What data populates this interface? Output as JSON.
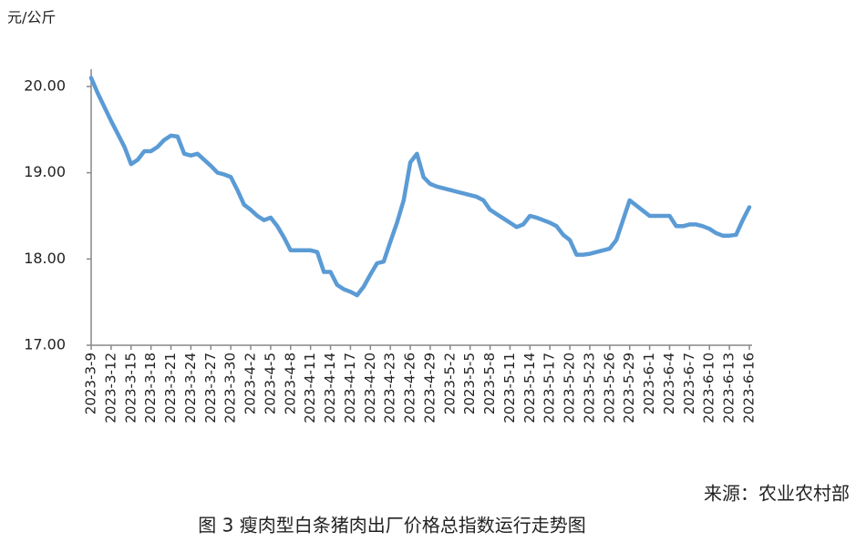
{
  "chart_data": {
    "type": "line",
    "y_axis_label": "元/公斤",
    "source": "来源：农业农村部",
    "caption": "图 3 瘦肉型白条猪肉出厂价格总指数运行走势图",
    "categories": [
      "2023-3-9",
      null,
      null,
      "2023-3-12",
      null,
      null,
      "2023-3-15",
      null,
      null,
      "2023-3-18",
      null,
      null,
      "2023-3-21",
      null,
      null,
      "2023-3-24",
      null,
      null,
      "2023-3-27",
      null,
      null,
      "2023-3-30",
      null,
      null,
      "2023-4-2",
      null,
      null,
      "2023-4-5",
      null,
      null,
      "2023-4-8",
      null,
      null,
      "2023-4-11",
      null,
      null,
      "2023-4-14",
      null,
      null,
      "2023-4-17",
      null,
      null,
      "2023-4-20",
      null,
      null,
      "2023-4-23",
      null,
      null,
      "2023-4-26",
      null,
      null,
      "2023-4-29",
      null,
      null,
      "2023-5-2",
      null,
      null,
      "2023-5-5",
      null,
      null,
      "2023-5-8",
      null,
      null,
      "2023-5-11",
      null,
      null,
      "2023-5-14",
      null,
      null,
      "2023-5-17",
      null,
      null,
      "2023-5-20",
      null,
      null,
      "2023-5-23",
      null,
      null,
      "2023-5-26",
      null,
      null,
      "2023-5-29",
      null,
      null,
      "2023-6-1",
      null,
      null,
      "2023-6-4",
      null,
      null,
      "2023-6-7",
      null,
      null,
      "2023-6-10",
      null,
      null,
      "2023-6-13",
      null,
      null,
      "2023-6-16"
    ],
    "values": [
      20.1,
      19.92,
      19.76,
      19.6,
      19.45,
      19.3,
      19.1,
      19.15,
      19.25,
      19.25,
      19.3,
      19.38,
      19.43,
      19.42,
      19.22,
      19.2,
      19.22,
      19.15,
      19.08,
      19.0,
      18.98,
      18.95,
      18.8,
      18.63,
      18.57,
      18.5,
      18.45,
      18.48,
      18.38,
      18.25,
      18.1,
      18.1,
      18.1,
      18.1,
      18.08,
      17.85,
      17.85,
      17.7,
      17.65,
      17.62,
      17.58,
      17.68,
      17.82,
      17.95,
      17.97,
      18.2,
      18.42,
      18.68,
      19.12,
      19.22,
      18.95,
      18.87,
      18.84,
      18.82,
      18.8,
      18.78,
      18.76,
      18.74,
      18.72,
      18.68,
      18.57,
      18.52,
      18.47,
      18.42,
      18.37,
      18.4,
      18.5,
      18.48,
      18.45,
      18.42,
      18.38,
      18.28,
      18.22,
      18.05,
      18.05,
      18.06,
      18.08,
      18.1,
      18.12,
      18.22,
      18.45,
      18.68,
      18.62,
      18.56,
      18.5,
      18.5,
      18.5,
      18.5,
      18.38,
      18.38,
      18.4,
      18.4,
      18.38,
      18.35,
      18.3,
      18.27,
      18.27,
      18.28,
      18.45,
      18.6
    ],
    "color": "#5b9bd5",
    "ylim": [
      17,
      20.2
    ],
    "yticks": [
      {
        "value": 17,
        "label": "17.00"
      },
      {
        "value": 18,
        "label": "18.00"
      },
      {
        "value": 19,
        "label": "19.00"
      },
      {
        "value": 20,
        "label": "20.00"
      }
    ]
  }
}
